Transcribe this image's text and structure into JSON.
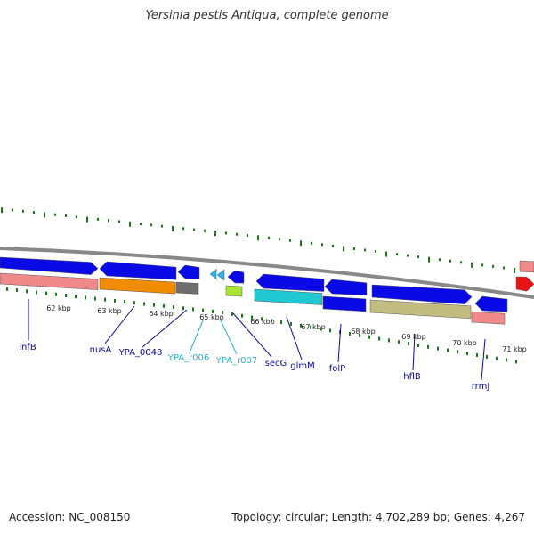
{
  "title": "Yersinia pestis Antiqua, complete genome",
  "footer": {
    "accession": "Accession: NC_008150",
    "summary": "Topology: circular; Length: 4,702,289 bp; Genes: 4,267"
  },
  "colors": {
    "cds": "#0a0ae6",
    "pseudo": "#f08a8a",
    "orange": "#f08c00",
    "gray": "#6e6e6e",
    "cyan": "#20c8d2",
    "lime": "#a8e632",
    "khaki": "#c2bc80",
    "red": "#e61414",
    "backbone": "#888888",
    "tick": "#1a7a1a",
    "label_dark": "#0a0a9c",
    "label_light": "#28b4d2"
  },
  "kbp_labels": [
    "62 kbp",
    "63 kbp",
    "64 kbp",
    "65 kbp",
    "66 kbp",
    "67 kbp",
    "68 kbp",
    "69 kbp",
    "70 kbp",
    "71 kbp"
  ],
  "gene_labels": [
    {
      "text": "infB",
      "tone": "dark"
    },
    {
      "text": "nusA",
      "tone": "dark"
    },
    {
      "text": "YPA_0048",
      "tone": "dark"
    },
    {
      "text": "YPA_r006",
      "tone": "light"
    },
    {
      "text": "YPA_r007",
      "tone": "light"
    },
    {
      "text": "secG",
      "tone": "dark"
    },
    {
      "text": "glmM",
      "tone": "dark"
    },
    {
      "text": "folP",
      "tone": "dark"
    },
    {
      "text": "hflB",
      "tone": "dark"
    },
    {
      "text": "rrmJ",
      "tone": "dark"
    }
  ]
}
